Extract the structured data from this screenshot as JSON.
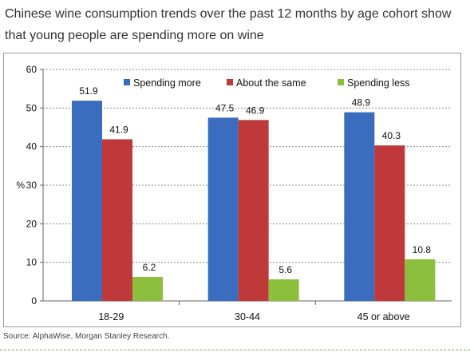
{
  "headline": "Chinese wine consumption trends over the past 12 months by age cohort show that young people are spending more on wine",
  "source": "Source: AlphaWise, Morgan Stanley Research.",
  "chart_data": {
    "type": "bar",
    "categories": [
      "18-29",
      "30-44",
      "45 or above"
    ],
    "series": [
      {
        "name": "Spending more",
        "values": [
          51.9,
          47.5,
          48.9
        ],
        "labels": [
          "51.9",
          "47.5",
          "48.9"
        ],
        "color": "#3a6dbd"
      },
      {
        "name": "About the same",
        "values": [
          41.9,
          46.9,
          40.3
        ],
        "labels": [
          "41.9",
          "46.9",
          "40.3"
        ],
        "color": "#c0393a"
      },
      {
        "name": "Spending less",
        "values": [
          6.2,
          5.6,
          10.8
        ],
        "labels": [
          "6.2",
          "5.6",
          "10.8"
        ],
        "color": "#8bbf3c"
      }
    ],
    "ylabel": "%",
    "ylim": [
      0,
      60
    ],
    "yticks": [
      0,
      10,
      20,
      30,
      40,
      50,
      60
    ],
    "ytick_labels": [
      "0",
      "10",
      "20",
      "30",
      "40",
      "50",
      "60"
    ],
    "grid": true,
    "legend_position": "top"
  }
}
